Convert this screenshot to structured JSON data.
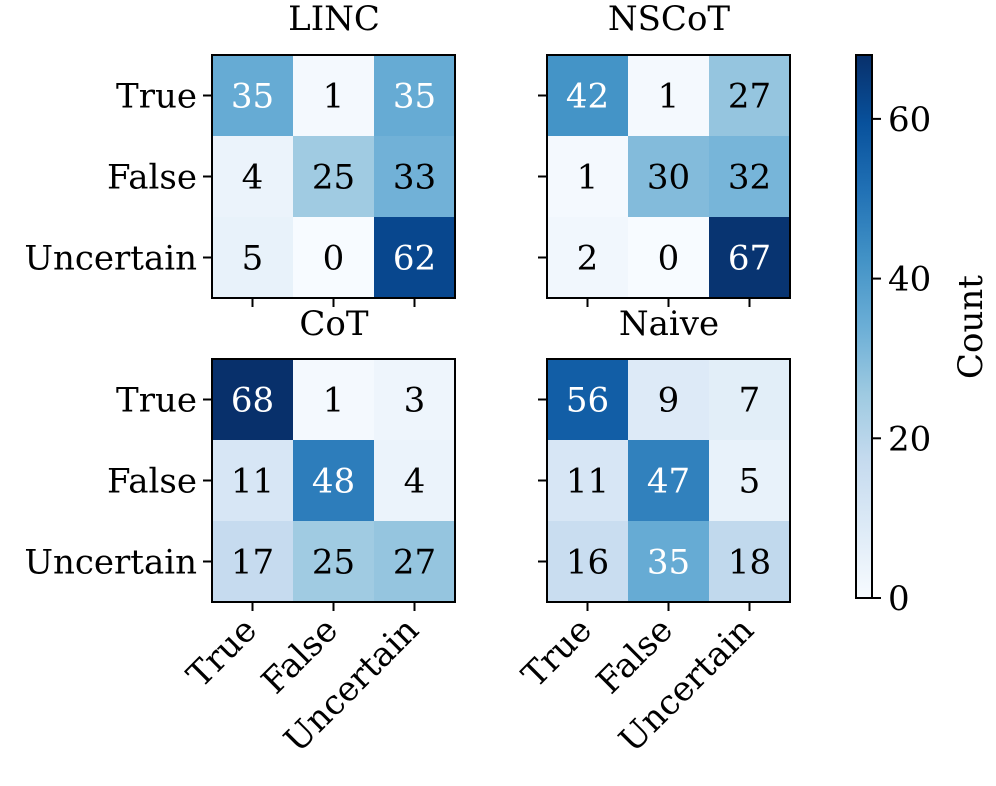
{
  "chart_data": {
    "type": "heatmap",
    "colormap": "Blues",
    "row_labels": [
      "True",
      "False",
      "Uncertain"
    ],
    "col_labels": [
      "True",
      "False",
      "Uncertain"
    ],
    "vmin": 0,
    "vmax": 68,
    "panels": [
      {
        "title": "LINC",
        "values": [
          [
            35,
            1,
            35
          ],
          [
            4,
            25,
            33
          ],
          [
            5,
            0,
            62
          ]
        ]
      },
      {
        "title": "NSCoT",
        "values": [
          [
            42,
            1,
            27
          ],
          [
            1,
            30,
            32
          ],
          [
            2,
            0,
            67
          ]
        ]
      },
      {
        "title": "CoT",
        "values": [
          [
            68,
            1,
            3
          ],
          [
            11,
            48,
            4
          ],
          [
            17,
            25,
            27
          ]
        ]
      },
      {
        "title": "Naive",
        "values": [
          [
            56,
            9,
            7
          ],
          [
            11,
            47,
            5
          ],
          [
            16,
            35,
            18
          ]
        ]
      }
    ],
    "colorbar": {
      "label": "Count",
      "ticks": [
        "0",
        "20",
        "40",
        "60"
      ]
    }
  }
}
